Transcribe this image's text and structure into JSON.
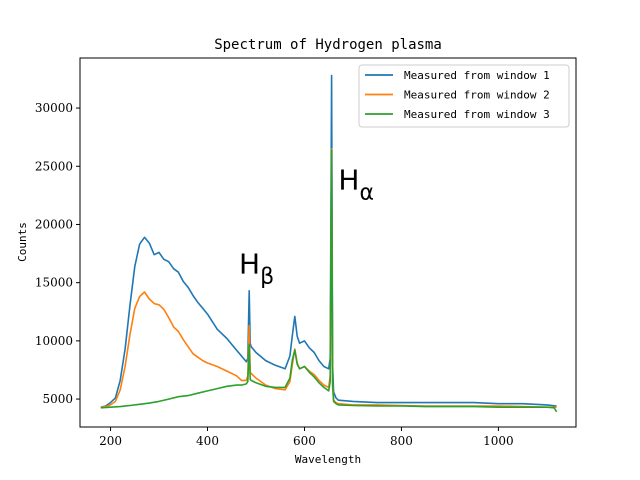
{
  "chart_data": {
    "type": "line",
    "title": "Spectrum of Hydrogen plasma",
    "xlabel": "Wavelength",
    "ylabel": "Counts",
    "xlim": [
      137,
      1160
    ],
    "ylim": [
      2600,
      34300
    ],
    "xticks": [
      200,
      400,
      600,
      800,
      1000
    ],
    "yticks": [
      5000,
      10000,
      15000,
      20000,
      25000,
      30000
    ],
    "grid": false,
    "legend_position": "top-right",
    "annotations": [
      {
        "main": "H",
        "sub": "α",
        "x": 670,
        "y": 23000
      },
      {
        "main": "H",
        "sub": "β",
        "x": 465,
        "y": 15800
      }
    ],
    "series": [
      {
        "name": "Measured from window 1",
        "color": "#1f77b4",
        "x": [
          180,
          190,
          200,
          210,
          220,
          230,
          240,
          250,
          260,
          270,
          280,
          290,
          300,
          310,
          320,
          330,
          340,
          350,
          360,
          370,
          380,
          390,
          400,
          420,
          440,
          460,
          470,
          480,
          483,
          486,
          488,
          490,
          500,
          520,
          540,
          560,
          570,
          575,
          580,
          585,
          590,
          600,
          610,
          620,
          630,
          640,
          650,
          653,
          656,
          658,
          660,
          665,
          670,
          700,
          750,
          800,
          850,
          900,
          950,
          1000,
          1050,
          1100,
          1120
        ],
        "y": [
          4300,
          4400,
          4700,
          5100,
          6600,
          9300,
          13000,
          16400,
          18300,
          18900,
          18400,
          17400,
          17600,
          17000,
          16800,
          16200,
          15900,
          15100,
          14600,
          13900,
          13300,
          12800,
          12300,
          11000,
          10200,
          9200,
          8700,
          8200,
          8500,
          14300,
          9800,
          9500,
          9000,
          8300,
          7900,
          7600,
          8700,
          10500,
          12100,
          10400,
          9800,
          10000,
          9400,
          9000,
          8300,
          7800,
          7600,
          8500,
          32800,
          8000,
          5600,
          5100,
          4900,
          4800,
          4700,
          4700,
          4700,
          4700,
          4700,
          4600,
          4600,
          4500,
          4400
        ]
      },
      {
        "name": "Measured from window 2",
        "color": "#ff7f0e",
        "x": [
          180,
          190,
          200,
          210,
          220,
          230,
          240,
          250,
          260,
          270,
          280,
          290,
          300,
          310,
          320,
          330,
          340,
          350,
          360,
          370,
          380,
          390,
          400,
          420,
          440,
          460,
          470,
          480,
          483,
          486,
          488,
          490,
          500,
          520,
          540,
          560,
          570,
          575,
          580,
          585,
          590,
          600,
          610,
          620,
          630,
          640,
          650,
          653,
          656,
          658,
          660,
          665,
          670,
          700,
          750,
          800,
          850,
          900,
          950,
          1000,
          1050,
          1100,
          1120
        ],
        "y": [
          4300,
          4350,
          4500,
          4800,
          5800,
          7800,
          10500,
          12800,
          13800,
          14200,
          13600,
          13200,
          13100,
          12700,
          12000,
          11200,
          10800,
          10100,
          9500,
          8900,
          8600,
          8300,
          8100,
          7800,
          7400,
          7000,
          6600,
          6600,
          7000,
          11300,
          7300,
          7200,
          6800,
          6200,
          5900,
          5800,
          6500,
          8000,
          9300,
          8100,
          7600,
          7800,
          7400,
          7100,
          6600,
          6200,
          6000,
          7000,
          26500,
          6500,
          4900,
          4700,
          4600,
          4500,
          4500,
          4450,
          4400,
          4400,
          4400,
          4400,
          4350,
          4300,
          4300
        ]
      },
      {
        "name": "Measured from window 3",
        "color": "#2ca02c",
        "x": [
          180,
          200,
          220,
          240,
          260,
          280,
          300,
          320,
          340,
          360,
          380,
          400,
          420,
          440,
          460,
          470,
          480,
          483,
          486,
          488,
          490,
          500,
          520,
          540,
          560,
          570,
          575,
          580,
          585,
          590,
          600,
          610,
          620,
          630,
          640,
          650,
          653,
          656,
          658,
          660,
          665,
          670,
          700,
          750,
          800,
          850,
          900,
          950,
          1000,
          1050,
          1100,
          1115,
          1120
        ],
        "y": [
          4250,
          4300,
          4350,
          4450,
          4550,
          4650,
          4800,
          5000,
          5200,
          5300,
          5500,
          5700,
          5900,
          6100,
          6200,
          6200,
          6300,
          6500,
          9700,
          6700,
          6600,
          6400,
          6100,
          6000,
          6000,
          6800,
          8400,
          9200,
          8000,
          7600,
          7800,
          7300,
          6900,
          6400,
          6000,
          5700,
          6500,
          26400,
          6100,
          4800,
          4600,
          4500,
          4450,
          4400,
          4400,
          4350,
          4350,
          4350,
          4300,
          4300,
          4300,
          4250,
          3900
        ]
      }
    ]
  }
}
